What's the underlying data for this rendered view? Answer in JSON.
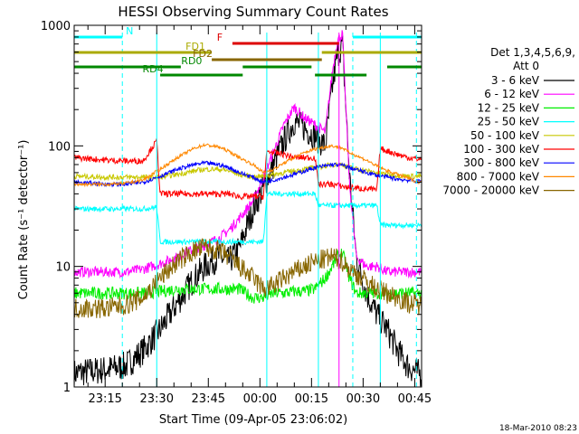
{
  "chart_data": {
    "type": "line",
    "title": "HESSI Observing Summary Count Rates",
    "xlabel": "Start Time (09-Apr-05 23:06:02)",
    "ylabel": "Count Rate (s⁻¹ detector⁻¹)",
    "yscale": "log",
    "ylim": [
      1,
      1000
    ],
    "xlim_minutes": [
      0,
      101
    ],
    "y_ticks": [
      "1",
      "10",
      "100",
      "1000"
    ],
    "x_ticks": [
      {
        "label": "23:15",
        "t": 9
      },
      {
        "label": "23:30",
        "t": 24
      },
      {
        "label": "23:45",
        "t": 39
      },
      {
        "label": "00:00",
        "t": 54
      },
      {
        "label": "00:15",
        "t": 69
      },
      {
        "label": "00:30",
        "t": 84
      },
      {
        "label": "00:45",
        "t": 99
      }
    ],
    "legend_header": [
      "Det 1,3,4,5,6,9,",
      "Att 0"
    ],
    "legend_position": "right",
    "series": [
      {
        "name": "3 - 6 keV",
        "color": "#000000",
        "points": [
          [
            0,
            1.3
          ],
          [
            10,
            1.4
          ],
          [
            15,
            1.5
          ],
          [
            20,
            2
          ],
          [
            25,
            3
          ],
          [
            30,
            5
          ],
          [
            35,
            8
          ],
          [
            38,
            10
          ],
          [
            42,
            12
          ],
          [
            45,
            11
          ],
          [
            48,
            14
          ],
          [
            52,
            30
          ],
          [
            55,
            45
          ],
          [
            58,
            70
          ],
          [
            61,
            110
          ],
          [
            64,
            160
          ],
          [
            67,
            140
          ],
          [
            70,
            120
          ],
          [
            73,
            100
          ],
          [
            75,
            300
          ],
          [
            76.5,
            560
          ],
          [
            78,
            700
          ],
          [
            80,
            60
          ],
          [
            82,
            12
          ],
          [
            85,
            6
          ],
          [
            88,
            4
          ],
          [
            91,
            3
          ],
          [
            94,
            2
          ],
          [
            97,
            1.5
          ],
          [
            100,
            1.3
          ]
        ]
      },
      {
        "name": "6 - 12 keV",
        "color": "#ff00ff",
        "points": [
          [
            0,
            9
          ],
          [
            10,
            9
          ],
          [
            15,
            9
          ],
          [
            20,
            9.5
          ],
          [
            25,
            10.5
          ],
          [
            30,
            12
          ],
          [
            35,
            14
          ],
          [
            38,
            15
          ],
          [
            42,
            17
          ],
          [
            45,
            20
          ],
          [
            48,
            25
          ],
          [
            52,
            35
          ],
          [
            55,
            55
          ],
          [
            58,
            90
          ],
          [
            61,
            150
          ],
          [
            64,
            210
          ],
          [
            67,
            170
          ],
          [
            70,
            150
          ],
          [
            73,
            130
          ],
          [
            75,
            400
          ],
          [
            76.5,
            750
          ],
          [
            78,
            850
          ],
          [
            80,
            50
          ],
          [
            82,
            12
          ],
          [
            85,
            10
          ],
          [
            88,
            10
          ],
          [
            91,
            9
          ],
          [
            94,
            9
          ],
          [
            97,
            9
          ],
          [
            100,
            9
          ]
        ]
      },
      {
        "name": "12 - 25 keV",
        "color": "#00ee00",
        "points": [
          [
            0,
            6
          ],
          [
            10,
            6
          ],
          [
            15,
            6
          ],
          [
            20,
            6
          ],
          [
            25,
            6.2
          ],
          [
            30,
            6.5
          ],
          [
            35,
            6.5
          ],
          [
            38,
            6.5
          ],
          [
            42,
            6.5
          ],
          [
            45,
            6.5
          ],
          [
            48,
            6.5
          ],
          [
            52,
            5.5
          ],
          [
            55,
            5.5
          ],
          [
            58,
            6
          ],
          [
            61,
            6
          ],
          [
            64,
            6.2
          ],
          [
            67,
            6.2
          ],
          [
            70,
            6.5
          ],
          [
            73,
            8
          ],
          [
            75,
            10
          ],
          [
            76.5,
            12
          ],
          [
            78,
            13
          ],
          [
            80,
            8
          ],
          [
            82,
            6
          ],
          [
            85,
            6
          ],
          [
            88,
            6
          ],
          [
            91,
            6
          ],
          [
            94,
            6
          ],
          [
            97,
            6
          ],
          [
            100,
            6
          ]
        ]
      },
      {
        "name": "25 - 50 keV",
        "color": "#00ffff",
        "points": [
          [
            0,
            30
          ],
          [
            10,
            30
          ],
          [
            15,
            30
          ],
          [
            20,
            30
          ],
          [
            24,
            31
          ],
          [
            25,
            16
          ],
          [
            30,
            16
          ],
          [
            35,
            16
          ],
          [
            38,
            16
          ],
          [
            42,
            16
          ],
          [
            45,
            16
          ],
          [
            48,
            16
          ],
          [
            52,
            16
          ],
          [
            55,
            16
          ],
          [
            56,
            40
          ],
          [
            61,
            40
          ],
          [
            64,
            40
          ],
          [
            67,
            40
          ],
          [
            70,
            40
          ],
          [
            71,
            32
          ],
          [
            75,
            32
          ],
          [
            80,
            32
          ],
          [
            85,
            32
          ],
          [
            88,
            32
          ],
          [
            89,
            22
          ],
          [
            94,
            22
          ],
          [
            97,
            22
          ],
          [
            100,
            22
          ]
        ]
      },
      {
        "name": "50 - 100 keV",
        "color": "#c8c800",
        "points": [
          [
            0,
            56
          ],
          [
            10,
            55
          ],
          [
            15,
            55
          ],
          [
            20,
            55
          ],
          [
            25,
            55
          ],
          [
            30,
            58
          ],
          [
            35,
            62
          ],
          [
            38,
            64
          ],
          [
            42,
            64
          ],
          [
            45,
            62
          ],
          [
            48,
            58
          ],
          [
            52,
            55
          ],
          [
            55,
            56
          ],
          [
            58,
            58
          ],
          [
            61,
            60
          ],
          [
            64,
            62
          ],
          [
            67,
            64
          ],
          [
            70,
            66
          ],
          [
            73,
            68
          ],
          [
            75,
            70
          ],
          [
            78,
            70
          ],
          [
            80,
            66
          ],
          [
            85,
            62
          ],
          [
            88,
            60
          ],
          [
            91,
            58
          ],
          [
            94,
            57
          ],
          [
            97,
            56
          ],
          [
            100,
            56
          ]
        ]
      },
      {
        "name": "100 - 300 keV",
        "color": "#ff0000",
        "points": [
          [
            0,
            80
          ],
          [
            10,
            76
          ],
          [
            15,
            75
          ],
          [
            20,
            75
          ],
          [
            24,
            110
          ],
          [
            25,
            40
          ],
          [
            30,
            40
          ],
          [
            35,
            40
          ],
          [
            38,
            40
          ],
          [
            42,
            40
          ],
          [
            45,
            40
          ],
          [
            48,
            38
          ],
          [
            52,
            38
          ],
          [
            55,
            38
          ],
          [
            56,
            90
          ],
          [
            61,
            85
          ],
          [
            64,
            80
          ],
          [
            67,
            80
          ],
          [
            70,
            80
          ],
          [
            71,
            48
          ],
          [
            75,
            48
          ],
          [
            80,
            45
          ],
          [
            85,
            44
          ],
          [
            88,
            43
          ],
          [
            89,
            95
          ],
          [
            94,
            85
          ],
          [
            97,
            80
          ],
          [
            100,
            78
          ]
        ]
      },
      {
        "name": "300 - 800 keV",
        "color": "#0000ff",
        "points": [
          [
            0,
            50
          ],
          [
            10,
            48
          ],
          [
            15,
            48
          ],
          [
            20,
            50
          ],
          [
            25,
            56
          ],
          [
            30,
            64
          ],
          [
            35,
            70
          ],
          [
            38,
            72
          ],
          [
            42,
            70
          ],
          [
            45,
            66
          ],
          [
            48,
            60
          ],
          [
            52,
            55
          ],
          [
            55,
            50
          ],
          [
            58,
            52
          ],
          [
            61,
            55
          ],
          [
            64,
            58
          ],
          [
            67,
            62
          ],
          [
            70,
            66
          ],
          [
            73,
            68
          ],
          [
            75,
            70
          ],
          [
            78,
            69
          ],
          [
            80,
            66
          ],
          [
            85,
            60
          ],
          [
            88,
            57
          ],
          [
            91,
            55
          ],
          [
            94,
            53
          ],
          [
            97,
            52
          ],
          [
            100,
            51
          ]
        ]
      },
      {
        "name": "800 - 7000 keV",
        "color": "#ff8800",
        "points": [
          [
            0,
            48
          ],
          [
            10,
            48
          ],
          [
            15,
            49
          ],
          [
            20,
            52
          ],
          [
            25,
            64
          ],
          [
            30,
            80
          ],
          [
            35,
            96
          ],
          [
            38,
            102
          ],
          [
            42,
            98
          ],
          [
            45,
            90
          ],
          [
            48,
            80
          ],
          [
            52,
            70
          ],
          [
            55,
            60
          ],
          [
            58,
            64
          ],
          [
            61,
            72
          ],
          [
            64,
            80
          ],
          [
            67,
            88
          ],
          [
            70,
            94
          ],
          [
            73,
            98
          ],
          [
            75,
            100
          ],
          [
            78,
            96
          ],
          [
            80,
            88
          ],
          [
            85,
            76
          ],
          [
            88,
            68
          ],
          [
            91,
            62
          ],
          [
            94,
            58
          ],
          [
            97,
            54
          ],
          [
            100,
            50
          ]
        ]
      },
      {
        "name": "7000 - 20000 keV",
        "color": "#886600",
        "points": [
          [
            0,
            4.5
          ],
          [
            10,
            4.5
          ],
          [
            15,
            4.8
          ],
          [
            20,
            5.5
          ],
          [
            25,
            8
          ],
          [
            30,
            11
          ],
          [
            35,
            13.5
          ],
          [
            38,
            14.5
          ],
          [
            42,
            13.5
          ],
          [
            45,
            12
          ],
          [
            48,
            10
          ],
          [
            52,
            8
          ],
          [
            55,
            6.5
          ],
          [
            58,
            7
          ],
          [
            61,
            8
          ],
          [
            64,
            9
          ],
          [
            67,
            10
          ],
          [
            70,
            11
          ],
          [
            73,
            11.5
          ],
          [
            75,
            12
          ],
          [
            78,
            11
          ],
          [
            80,
            9.5
          ],
          [
            85,
            7.5
          ],
          [
            88,
            6.5
          ],
          [
            91,
            6
          ],
          [
            94,
            5.5
          ],
          [
            97,
            5
          ],
          [
            100,
            4.8
          ]
        ]
      }
    ],
    "flag_bars": [
      {
        "label": "N",
        "color": "#00ffff",
        "level": 0,
        "segments": [
          [
            0,
            14
          ],
          [
            81,
            101
          ]
        ]
      },
      {
        "label": "F",
        "color": "#dd0000",
        "level": 1,
        "segments": [
          [
            46,
            77
          ]
        ]
      },
      {
        "label": "FD1",
        "color": "#aaaa00",
        "level": 2,
        "segments": [
          [
            0,
            40
          ],
          [
            72,
            101
          ]
        ]
      },
      {
        "label": "FD2",
        "color": "#886600",
        "level": 3,
        "segments": [
          [
            40,
            72
          ]
        ]
      },
      {
        "label": "RD0",
        "color": "#008800",
        "level": 4,
        "segments": [
          [
            0,
            31
          ],
          [
            49,
            69
          ],
          [
            91,
            101
          ]
        ]
      },
      {
        "label": "RD4",
        "color": "#008800",
        "level": 5,
        "segments": [
          [
            25,
            49
          ],
          [
            70,
            85
          ]
        ]
      }
    ],
    "vertical_markers": [
      {
        "t": 14,
        "color": "#00ffff",
        "style": "dashed"
      },
      {
        "t": 24,
        "color": "#00ffff",
        "style": "solid"
      },
      {
        "t": 56,
        "color": "#00ffff",
        "style": "solid"
      },
      {
        "t": 71,
        "color": "#00ffff",
        "style": "solid"
      },
      {
        "t": 77,
        "color": "#ff00ff",
        "style": "solid"
      },
      {
        "t": 81,
        "color": "#00ffff",
        "style": "dashed"
      },
      {
        "t": 89,
        "color": "#00ffff",
        "style": "solid"
      },
      {
        "t": 99.5,
        "color": "#00ffff",
        "style": "dashed"
      }
    ],
    "grid": false
  },
  "footer": {
    "timestamp": "18-Mar-2010 08:23"
  }
}
